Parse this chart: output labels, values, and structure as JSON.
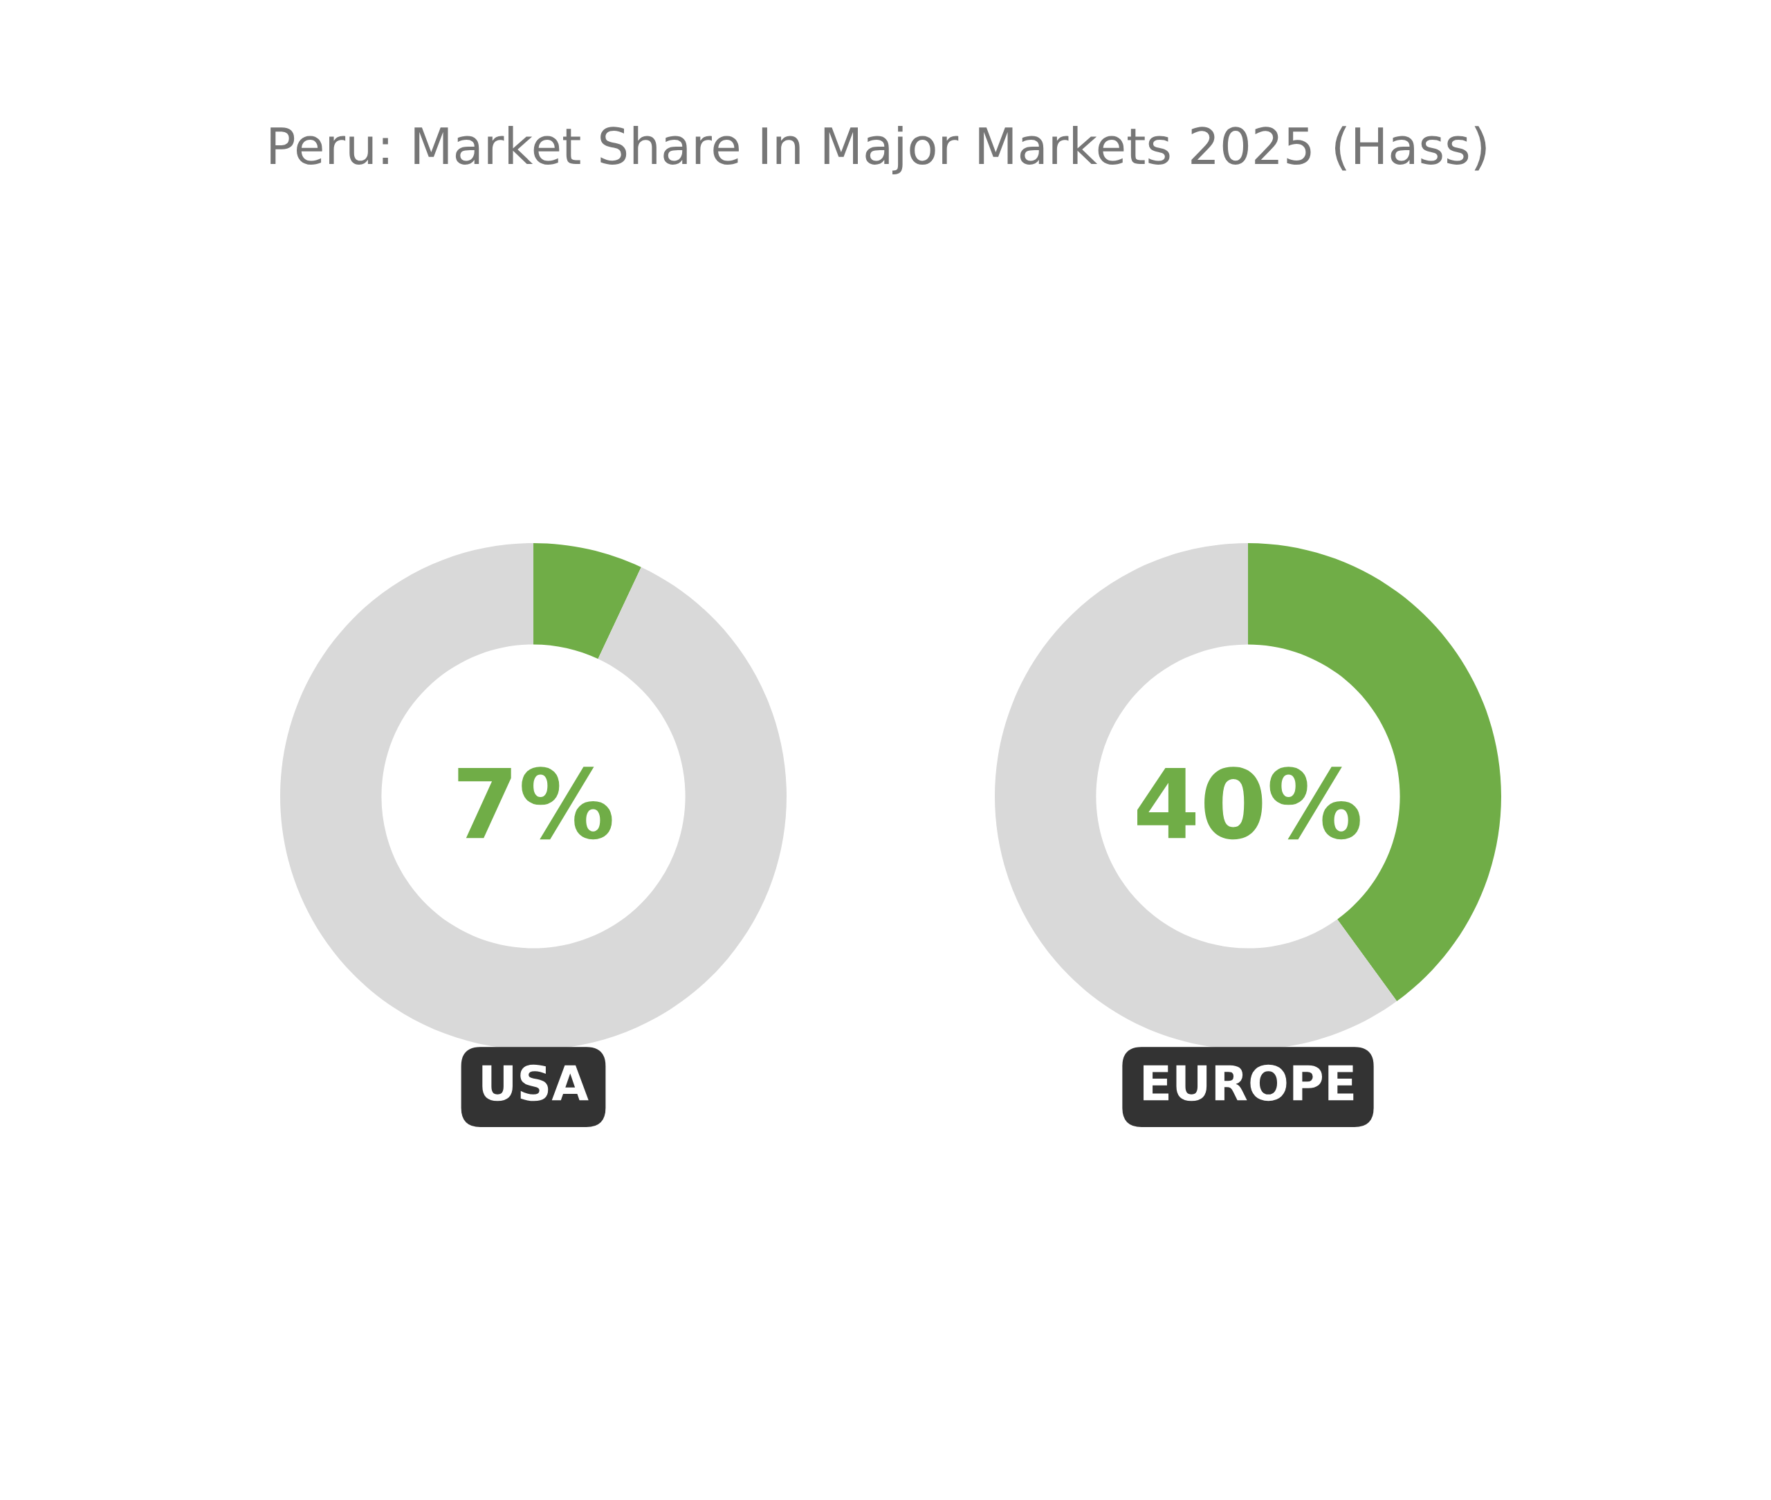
{
  "chart_data": [
    {
      "type": "donut",
      "title": "Peru: Market Share In Major Markets 2025 (Hass)",
      "xlabel": "USA",
      "categories": [
        null,
        null
      ],
      "values": [
        7,
        93
      ],
      "colors": [
        "#70ad47",
        "#d9d9d9"
      ],
      "annotations": [
        "7%"
      ]
    },
    {
      "type": "donut",
      "xlabel": "EUROPE",
      "categories": [
        null,
        null
      ],
      "values": [
        40,
        60
      ],
      "colors": [
        "#70ad47",
        "#d9d9d9"
      ],
      "annotations": [
        "40%"
      ]
    }
  ]
}
